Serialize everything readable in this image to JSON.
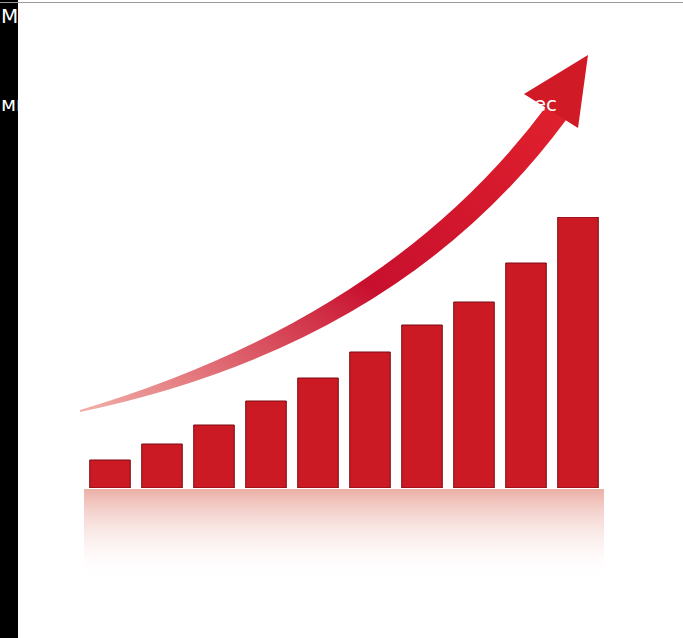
{
  "chart_data": {
    "type": "bar",
    "categories": [
      null,
      null,
      null,
      null,
      null,
      null,
      null,
      null,
      null,
      null
    ],
    "values": [
      28,
      44,
      63,
      87,
      110,
      136,
      163,
      186,
      225,
      271
    ],
    "color": "#cc1a24",
    "grid": false,
    "tick_labels": false,
    "annotations": [
      "М",
      "ми",
      "чес"
    ]
  }
}
